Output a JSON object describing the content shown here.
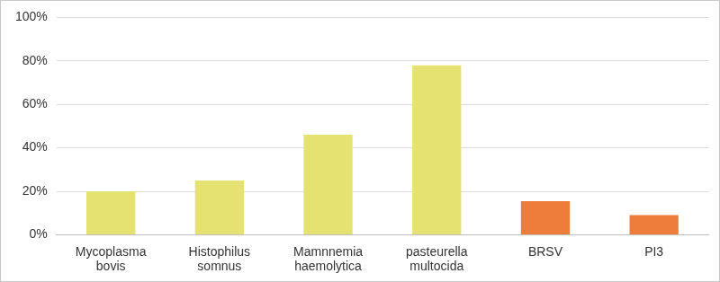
{
  "chart_data": {
    "type": "bar",
    "categories": [
      "Mycoplasma bovis",
      "Histophilus somnus",
      "Mamnnemia haemolytica",
      "pasteurella multocida",
      "BRSV",
      "PI3"
    ],
    "values": [
      20,
      25,
      46,
      78,
      15.5,
      9
    ],
    "colors": [
      "#e6e272",
      "#e6e272",
      "#e6e272",
      "#e6e272",
      "#ee7d3c",
      "#ee7d3c"
    ],
    "ylim": [
      0,
      100
    ],
    "yticks": [
      {
        "value": 0,
        "label": "0%"
      },
      {
        "value": 20,
        "label": "20%"
      },
      {
        "value": 40,
        "label": "40%"
      },
      {
        "value": 60,
        "label": "60%"
      },
      {
        "value": 80,
        "label": "80%"
      },
      {
        "value": 100,
        "label": "100%"
      }
    ],
    "grid": true
  }
}
